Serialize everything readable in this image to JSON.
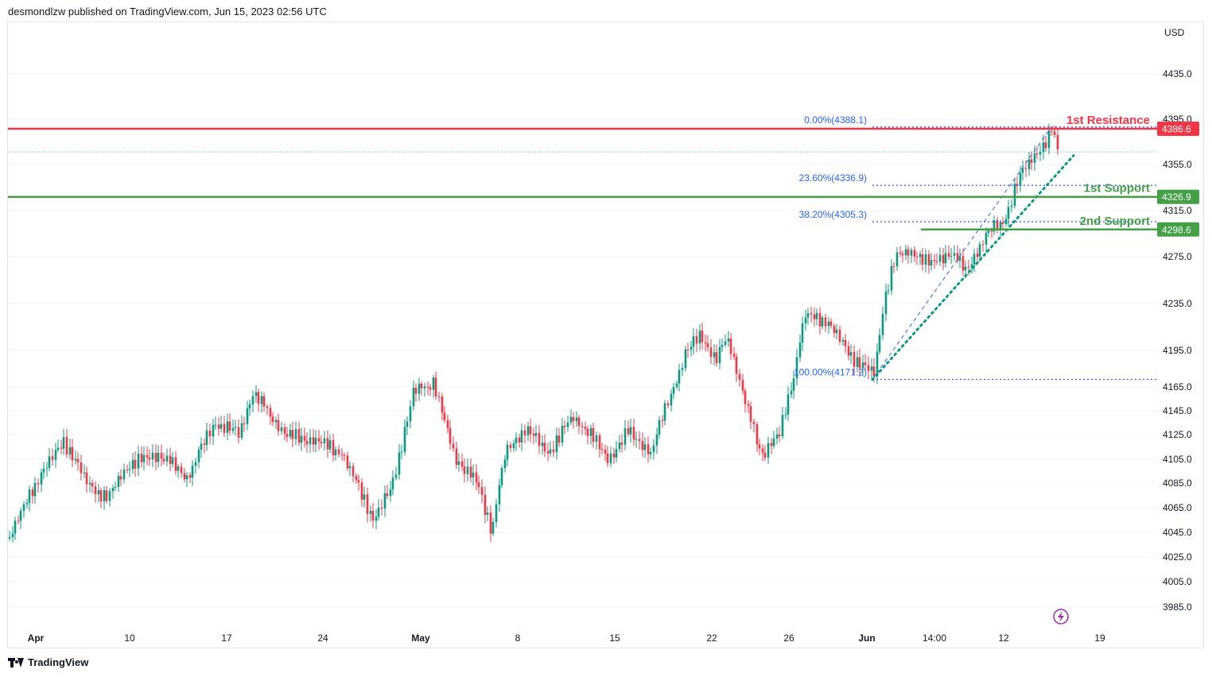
{
  "header": {
    "published_by": "desmondlzw published on TradingView.com, Jun 15, 2023 02:56 UTC"
  },
  "footer": {
    "brand": "TradingView",
    "logo_icon": "tradingview-logo-icon"
  },
  "colors": {
    "up": "#089981",
    "down": "#f23645",
    "resistance": "#f23645",
    "support": "#43a047",
    "fib": "#2962ff",
    "trend": "#089981",
    "grid": "#f0f3fa",
    "border": "#e0e3eb",
    "lightning": "#9c27b0"
  },
  "lightning_icon": "lightning-bolt-icon",
  "chart_data": {
    "type": "candlestick",
    "currency_label": "USD",
    "y_ticks": [
      4435.0,
      4395.0,
      4355.0,
      4315.0,
      4275.0,
      4235.0,
      4195.0,
      4165.0,
      4145.0,
      4125.0,
      4105.0,
      4085.0,
      4065.0,
      4045.0,
      4025.0,
      4005.0,
      3985.0
    ],
    "y_tick_labels": [
      "4435.0",
      "4395.0",
      "4355.0",
      "4315.0",
      "4275.0",
      "4235.0",
      "4195.0",
      "4165.0",
      "4145.0",
      "4125.0",
      "4105.0",
      "4085.0",
      "4065.0",
      "4045.0",
      "4025.0",
      "4005.0",
      "3985.0"
    ],
    "x_labels": [
      {
        "text": "Apr",
        "bold": true
      },
      {
        "text": "10",
        "bold": false
      },
      {
        "text": "17",
        "bold": false
      },
      {
        "text": "24",
        "bold": false
      },
      {
        "text": "May",
        "bold": true
      },
      {
        "text": "8",
        "bold": false
      },
      {
        "text": "15",
        "bold": false
      },
      {
        "text": "22",
        "bold": false
      },
      {
        "text": "26",
        "bold": false
      },
      {
        "text": "Jun",
        "bold": true
      },
      {
        "text": "14:00",
        "bold": false
      },
      {
        "text": "12",
        "bold": false
      },
      {
        "text": "19",
        "bold": false
      }
    ],
    "levels": [
      {
        "name": "1st Resistance",
        "value": 4386.6,
        "label": "4386.6",
        "kind": "resistance"
      },
      {
        "name": "1st Support",
        "value": 4326.9,
        "label": "4326.9",
        "kind": "support"
      },
      {
        "name": "2nd Support",
        "value": 4298.6,
        "label": "4298.6",
        "kind": "support"
      }
    ],
    "fibonacci": [
      {
        "label": "0.00%(4388.1)",
        "value": 4388.1
      },
      {
        "label": "23.60%(4336.9)",
        "value": 4336.9
      },
      {
        "label": "38.20%(4305.3)",
        "value": 4305.3
      },
      {
        "label": "100.00%(4171.2)",
        "value": 4171.2
      }
    ],
    "last_price": 4366,
    "trendline": {
      "from": 4171,
      "to": 4363
    }
  }
}
